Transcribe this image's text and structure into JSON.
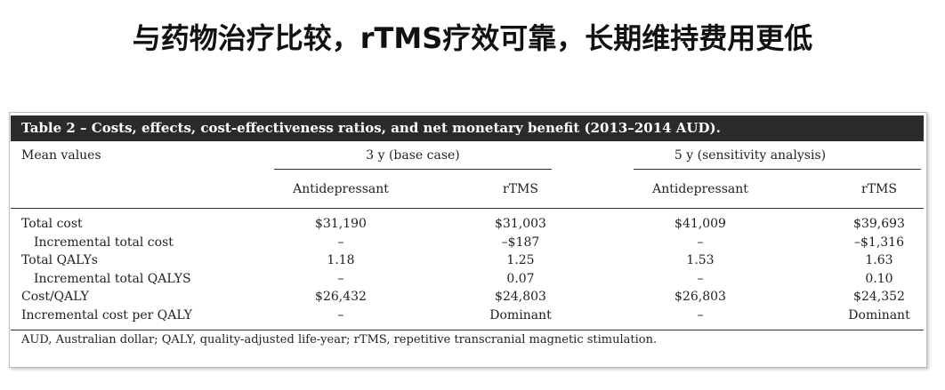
{
  "title": "与药物治疗比较，rTMS疗效可靠，长期维持费用更低",
  "table": {
    "caption": "Table 2 – Costs, effects, cost-effectiveness ratios, and net monetary benefit (2013–2014 AUD).",
    "stub_header": "Mean values",
    "groups": [
      "3 y (base case)",
      "5 y (sensitivity analysis)"
    ],
    "columns": [
      "Antidepressant",
      "rTMS",
      "Antidepressant",
      "rTMS"
    ],
    "rows": [
      {
        "label": "Total cost",
        "indent": false,
        "cells": [
          "$31,190",
          "$31,003",
          "$41,009",
          "$39,693"
        ]
      },
      {
        "label": "Incremental total cost",
        "indent": true,
        "cells": [
          "–",
          "–$187",
          "–",
          "–$1,316"
        ]
      },
      {
        "label": "Total QALYs",
        "indent": false,
        "cells": [
          "1.18",
          "1.25",
          "1.53",
          "1.63"
        ]
      },
      {
        "label": "Incremental total QALYS",
        "indent": true,
        "cells": [
          "–",
          "0.07",
          "–",
          "0.10"
        ]
      },
      {
        "label": "Cost/QALY",
        "indent": false,
        "cells": [
          "$26,432",
          "$24,803",
          "$26,803",
          "$24,352"
        ]
      },
      {
        "label": "Incremental cost per QALY",
        "indent": false,
        "cells": [
          "–",
          "Dominant",
          "–",
          "Dominant"
        ]
      }
    ],
    "footnote": "AUD, Australian dollar; QALY, quality-adjusted life-year; rTMS, repetitive transcranial magnetic stimulation."
  }
}
